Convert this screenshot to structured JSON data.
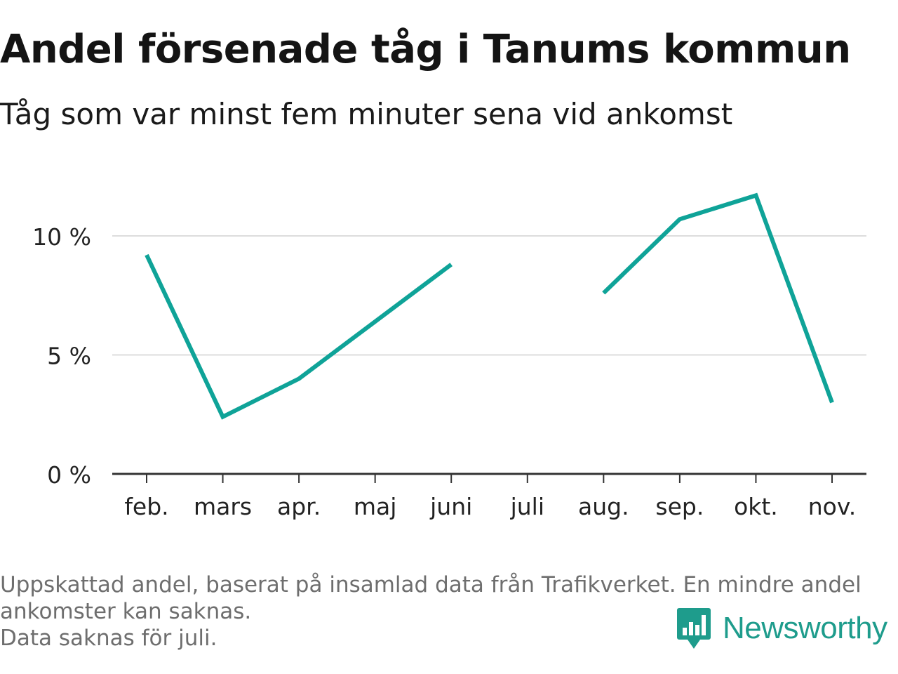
{
  "header": {
    "title": "Andel försenade tåg i Tanums kommun",
    "subtitle": "Tåg som var minst fem minuter sena vid ankomst"
  },
  "chart_data": {
    "type": "line",
    "categories": [
      "feb.",
      "mars",
      "apr.",
      "maj",
      "juni",
      "juli",
      "aug.",
      "sep.",
      "okt.",
      "nov."
    ],
    "series": [
      {
        "values": [
          9.2,
          2.4,
          4.0,
          6.4,
          8.8,
          null,
          7.6,
          10.7,
          11.7,
          3.0
        ]
      }
    ],
    "yticks": [
      0,
      5,
      10
    ],
    "ytick_labels": [
      "0 %",
      "5 %",
      "10 %"
    ],
    "ylim": [
      0,
      12
    ],
    "grid": true,
    "line_color": "#0fa398",
    "grid_color": "#dddddd",
    "axis_color": "#333333"
  },
  "footnote": {
    "line1": "Uppskattad andel, baserat på insamlad data från Trafikverket. En mindre andel",
    "line2": "ankomster kan saknas.",
    "line3": "Data saknas för juli."
  },
  "brand": {
    "name": "Newsworthy",
    "icon": "newsworthy-logo-icon",
    "color": "#1e9c8c"
  }
}
